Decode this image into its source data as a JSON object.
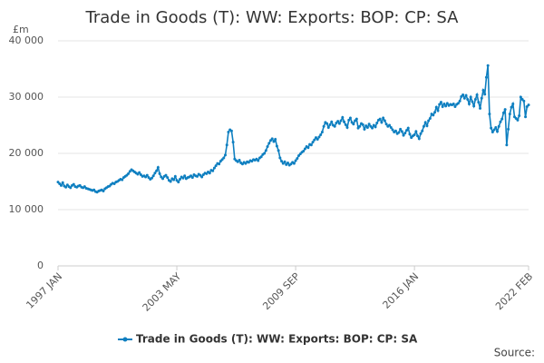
{
  "chart_data": {
    "type": "line",
    "title": "Trade in Goods (T): WW: Exports: BOP: CP: SA",
    "y_unit": "£m",
    "source": "Source:",
    "categories": [
      "1997 JAN",
      null,
      null,
      null,
      null,
      null,
      null,
      null,
      null,
      null,
      null,
      null,
      null,
      null,
      null,
      null,
      null,
      null,
      null,
      null,
      null,
      null,
      null,
      null,
      null,
      null,
      null,
      null,
      null,
      null,
      null,
      null,
      null,
      null,
      null,
      null,
      null,
      null,
      null,
      null,
      null,
      null,
      null,
      null,
      null,
      null,
      null,
      null,
      null,
      null,
      null,
      null,
      null,
      null,
      null,
      null,
      null,
      null,
      null,
      null,
      null,
      null,
      null,
      null,
      null,
      null,
      null,
      null,
      null,
      null,
      null,
      null,
      null,
      null,
      null,
      null,
      "2003 MAY",
      null,
      null,
      null,
      null,
      null,
      null,
      null,
      null,
      null,
      null,
      null,
      null,
      null,
      null,
      null,
      null,
      null,
      null,
      null,
      null,
      null,
      null,
      null,
      null,
      null,
      null,
      null,
      null,
      null,
      null,
      null,
      null,
      null,
      null,
      null,
      null,
      null,
      null,
      null,
      null,
      null,
      null,
      null,
      null,
      null,
      null,
      null,
      null,
      null,
      null,
      null,
      null,
      null,
      null,
      null,
      null,
      null,
      null,
      null,
      null,
      null,
      null,
      null,
      null,
      null,
      null,
      null,
      null,
      null,
      null,
      null,
      null,
      null,
      null,
      null,
      "2009 SEP",
      null,
      null,
      null,
      null,
      null,
      null,
      null,
      null,
      null,
      null,
      null,
      null,
      null,
      null,
      null,
      null,
      null,
      null,
      null,
      null,
      null,
      null,
      null,
      null,
      null,
      null,
      null,
      null,
      null,
      null,
      null,
      null,
      null,
      null,
      null,
      null,
      null,
      null,
      null,
      null,
      null,
      null,
      null,
      null,
      null,
      null,
      null,
      null,
      null,
      null,
      null,
      null,
      null,
      null,
      null,
      null,
      null,
      null,
      null,
      null,
      null,
      null,
      null,
      null,
      null,
      null,
      null,
      null,
      null,
      null,
      null,
      null,
      null,
      null,
      null,
      "2016 JAN",
      null,
      null,
      null,
      null,
      null,
      null,
      null,
      null,
      null,
      null,
      null,
      null,
      null,
      null,
      null,
      null,
      null,
      null,
      null,
      null,
      null,
      null,
      null,
      null,
      null,
      null,
      null,
      null,
      null,
      null,
      null,
      null,
      null,
      null,
      null,
      null,
      null,
      null,
      null,
      null,
      null,
      null,
      null,
      null,
      null,
      null,
      null,
      null,
      null,
      null,
      null,
      null,
      null,
      null,
      null,
      null,
      null,
      null,
      null,
      null,
      null,
      null,
      null,
      null,
      null,
      null,
      null,
      null,
      null,
      null,
      null,
      null,
      "2022 FEB"
    ],
    "series": [
      {
        "name": "Trade in Goods (T): WW: Exports: BOP: CP: SA",
        "color": "#0e7fc0",
        "values": [
          14900,
          14600,
          14300,
          14800,
          14200,
          14000,
          14400,
          14100,
          13900,
          14300,
          14500,
          14100,
          14000,
          14200,
          14300,
          14000,
          13900,
          14100,
          13800,
          13700,
          13600,
          13500,
          13400,
          13500,
          13200,
          13100,
          13300,
          13400,
          13500,
          13300,
          13700,
          13900,
          14100,
          14200,
          14500,
          14700,
          14600,
          14900,
          15000,
          15200,
          15400,
          15300,
          15700,
          15900,
          16100,
          16400,
          16800,
          17100,
          16900,
          16700,
          16500,
          16300,
          16600,
          16200,
          15900,
          16000,
          15800,
          16100,
          15700,
          15400,
          15600,
          16000,
          16500,
          16900,
          17500,
          16400,
          15800,
          15500,
          15900,
          16100,
          15700,
          15200,
          15000,
          15500,
          15300,
          15900,
          15200,
          14900,
          15400,
          15800,
          15600,
          16000,
          15500,
          15700,
          15800,
          16000,
          15700,
          16200,
          16000,
          15900,
          16300,
          16100,
          15800,
          16200,
          16500,
          16400,
          16700,
          16500,
          17000,
          16900,
          17400,
          17800,
          18200,
          18100,
          18600,
          18900,
          19200,
          19700,
          21500,
          23800,
          24200,
          24000,
          22000,
          19000,
          18700,
          18500,
          18800,
          18300,
          18100,
          18400,
          18200,
          18500,
          18400,
          18700,
          18600,
          18900,
          18800,
          19000,
          18700,
          19200,
          19400,
          19800,
          20000,
          20500,
          21200,
          21800,
          22300,
          22600,
          22100,
          22500,
          21300,
          20500,
          19200,
          18600,
          18200,
          18500,
          18000,
          18300,
          17900,
          18100,
          18400,
          18200,
          18700,
          19100,
          19600,
          19900,
          20200,
          20400,
          20800,
          21200,
          21000,
          21600,
          21500,
          22000,
          22400,
          22800,
          22500,
          22900,
          23300,
          23800,
          24800,
          25500,
          25300,
          24600,
          25100,
          25600,
          25000,
          24800,
          25400,
          25700,
          25300,
          25800,
          26400,
          25600,
          25100,
          24600,
          25900,
          26300,
          25500,
          25200,
          25800,
          26100,
          24500,
          24800,
          25300,
          25100,
          24300,
          24900,
          24600,
          25200,
          24800,
          24500,
          25000,
          24700,
          25400,
          25900,
          26100,
          25500,
          26300,
          25800,
          25200,
          24800,
          25000,
          24600,
          24200,
          23800,
          24000,
          23500,
          23700,
          24300,
          23900,
          23200,
          23600,
          24100,
          24500,
          23400,
          22800,
          23100,
          23300,
          23900,
          23100,
          22600,
          23500,
          24000,
          24800,
          25500,
          24900,
          25800,
          26200,
          27000,
          26800,
          27300,
          28200,
          27600,
          28700,
          29100,
          28300,
          28800,
          28400,
          28900,
          28500,
          28700,
          28600,
          28800,
          28300,
          28700,
          28900,
          29300,
          30100,
          30400,
          29800,
          30300,
          29600,
          28800,
          30000,
          29200,
          28400,
          29600,
          30400,
          29100,
          28000,
          29800,
          31200,
          30500,
          33500,
          35600,
          27000,
          24500,
          23800,
          24200,
          24600,
          23900,
          24800,
          25600,
          26100,
          27200,
          27800,
          21500,
          24300,
          27000,
          28200,
          28800,
          26500,
          26200,
          25900,
          26700,
          30000,
          29600,
          29300,
          26500,
          28300,
          28600
        ]
      }
    ],
    "ylim": [
      0,
      40000
    ],
    "yticks": [
      0,
      {
        "value": 10000,
        "label": "10 000"
      },
      {
        "value": 20000,
        "label": "20 000"
      },
      {
        "value": 30000,
        "label": "30 000"
      },
      {
        "value": 40000,
        "label": "40 000"
      }
    ],
    "grid": true
  }
}
